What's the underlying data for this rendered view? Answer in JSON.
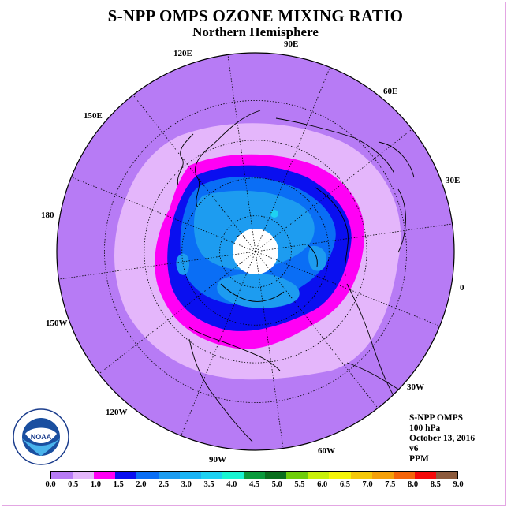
{
  "header": {
    "title": "S-NPP OMPS OZONE MIXING RATIO",
    "subtitle": "Northern Hemisphere"
  },
  "map": {
    "projection": "north-polar-stereographic",
    "center_longitude_label": "0",
    "longitude_labels": [
      "120E",
      "90E",
      "60E",
      "150E",
      "30E",
      "180",
      "0",
      "150W",
      "30W",
      "120W",
      "60W",
      "90W"
    ],
    "field_colors": {
      "outer": "#b77bf5",
      "ring_lavender": "#e4b6fb",
      "ring_magenta": "#ff00f5",
      "ring_blue": "#0a0ff0",
      "core_mid_blue": "#0a6ef5",
      "core_light_blue": "#1d9cf0",
      "no_data_pole": "#ffffff"
    }
  },
  "info": {
    "lines": [
      "S-NPP OMPS",
      "100 hPa",
      "October 13, 2016",
      "v6",
      "PPM"
    ]
  },
  "logo": {
    "name": "NOAA",
    "ring_text": "NATIONAL OCEANIC AND ATMOSPHERIC ADMINISTRATION · U.S. DEPARTMENT OF COMMERCE"
  },
  "legend": {
    "colors": [
      "#b77bf5",
      "#e4b6fb",
      "#ff00f5",
      "#0a0ff0",
      "#0a6ef5",
      "#1d9cf0",
      "#1ab4f5",
      "#1dd2f2",
      "#19f5d2",
      "#0a9a3c",
      "#0a6e1e",
      "#6ecd0a",
      "#c8f00a",
      "#f5f50a",
      "#f5c80a",
      "#f5a00a",
      "#f5640a",
      "#f50a0a",
      "#8c5a3c"
    ],
    "ticks": [
      "0.0",
      "0.5",
      "1.0",
      "1.5",
      "2.0",
      "2.5",
      "3.0",
      "3.5",
      "4.0",
      "4.5",
      "5.0",
      "5.5",
      "6.0",
      "6.5",
      "7.0",
      "7.5",
      "8.0",
      "8.5",
      "9.0"
    ]
  }
}
